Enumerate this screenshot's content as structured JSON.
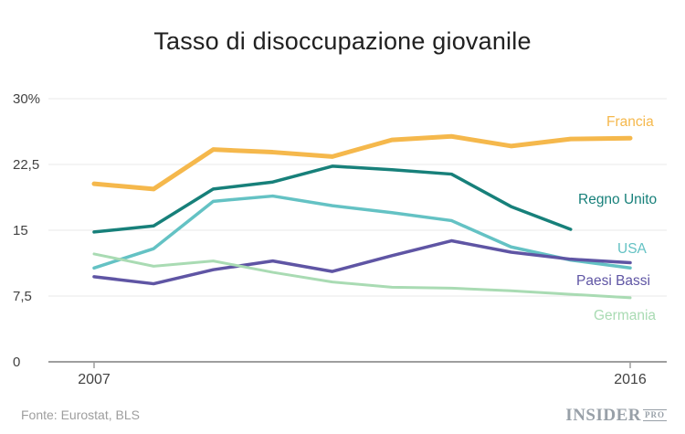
{
  "title": "Tasso di disoccupazione giovanile",
  "source": "Fonte: Eurostat, BLS",
  "brand": {
    "name": "INSIDER",
    "suffix": "PRO"
  },
  "colors": {
    "background": "#ffffff",
    "title": "#212121",
    "axis_label": "#424242",
    "gridline": "#e8e8e8",
    "axis_line": "#9e9e9e",
    "source": "#9e9e9e",
    "brand": "#98a0a8"
  },
  "chart_data": {
    "type": "line",
    "x": [
      2007,
      2008,
      2009,
      2010,
      2011,
      2012,
      2013,
      2014,
      2015,
      2016
    ],
    "xlabel": "",
    "ylabel": "",
    "ylim": [
      0,
      30
    ],
    "grid": true,
    "x_ticks": [
      {
        "label": "2007",
        "value": 2007
      },
      {
        "label": "2016",
        "value": 2016
      }
    ],
    "y_ticks": [
      {
        "label": "30%",
        "value": 30
      },
      {
        "label": "22,5",
        "value": 22.5
      },
      {
        "label": "15",
        "value": 15
      },
      {
        "label": "7,5",
        "value": 7.5
      },
      {
        "label": "0",
        "value": 0
      }
    ],
    "legend_position": "right-inline",
    "series": [
      {
        "name": "Francia",
        "color": "#F5B84C",
        "stroke_width": 5,
        "values": [
          20.3,
          19.7,
          24.2,
          23.9,
          23.4,
          25.3,
          25.7,
          24.6,
          25.4,
          25.5
        ]
      },
      {
        "name": "Regno Unito",
        "color": "#17807A",
        "stroke_width": 3.5,
        "values": [
          14.8,
          15.5,
          19.7,
          20.5,
          22.3,
          21.9,
          21.4,
          17.7,
          15.1,
          null
        ]
      },
      {
        "name": "USA",
        "color": "#64C2C4",
        "stroke_width": 3.5,
        "values": [
          10.7,
          12.9,
          18.3,
          18.9,
          17.8,
          17.0,
          16.1,
          13.1,
          11.6,
          10.7
        ]
      },
      {
        "name": "Paesi Bassi",
        "color": "#5F55A4",
        "stroke_width": 3.5,
        "values": [
          9.7,
          8.9,
          10.5,
          11.5,
          10.3,
          12.1,
          13.8,
          12.5,
          11.7,
          11.3
        ]
      },
      {
        "name": "Germania",
        "color": "#A9DBB3",
        "stroke_width": 3,
        "values": [
          12.3,
          10.9,
          11.5,
          10.2,
          9.1,
          8.5,
          8.4,
          8.1,
          7.7,
          7.3
        ]
      }
    ]
  }
}
